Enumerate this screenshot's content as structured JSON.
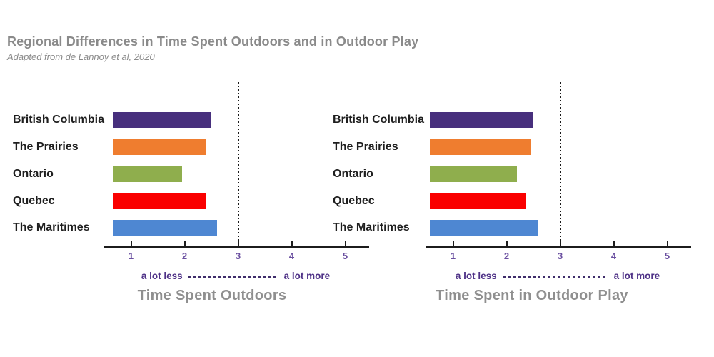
{
  "page": {
    "title": "Regional Differences in Time Spent Outdoors and in Outdoor Play",
    "subtitle": "Adapted from de Lannoy et al, 2020"
  },
  "colors": {
    "bar_purple": "#472F7D",
    "bar_orange": "#EF7D2F",
    "bar_green": "#8FAE4D",
    "bar_red": "#FA0000",
    "bar_blue": "#4E87D2",
    "axis_black": "#1C1C1C",
    "tick_label_purple": "#6A4FA0",
    "scale_label_purple": "#4F3287",
    "title_gray": "#8A8A8A"
  },
  "chart_data": [
    {
      "type": "bar",
      "orientation": "horizontal",
      "title": "Time Spent Outdoors",
      "categories": [
        "British Columbia",
        "The Prairies",
        "Ontario",
        "Quebec",
        "The Maritimes"
      ],
      "values": [
        2.5,
        2.4,
        1.95,
        2.4,
        2.6
      ],
      "bar_colors": [
        "#472F7D",
        "#EF7D2F",
        "#8FAE4D",
        "#FA0000",
        "#4E87D2"
      ],
      "ticks": [
        1,
        2,
        3,
        4,
        5
      ],
      "xlim": [
        0.5,
        5.45
      ],
      "reference_line_x": 3,
      "scale_min_label": "a lot less",
      "scale_max_label": "a lot more",
      "grid": false,
      "legend": false
    },
    {
      "type": "bar",
      "orientation": "horizontal",
      "title": "Time Spent in Outdoor Play",
      "categories": [
        "British Columbia",
        "The Prairies",
        "Ontario",
        "Quebec",
        "The Maritimes"
      ],
      "values": [
        2.5,
        2.45,
        2.2,
        2.35,
        2.6
      ],
      "bar_colors": [
        "#472F7D",
        "#EF7D2F",
        "#8FAE4D",
        "#FA0000",
        "#4E87D2"
      ],
      "ticks": [
        1,
        2,
        3,
        4,
        5
      ],
      "xlim": [
        0.5,
        5.45
      ],
      "reference_line_x": 3,
      "scale_min_label": "a lot less",
      "scale_max_label": "a lot more",
      "grid": false,
      "legend": false
    }
  ]
}
